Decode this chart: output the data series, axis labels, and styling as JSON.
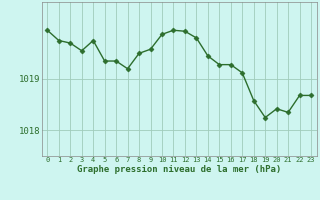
{
  "x": [
    0,
    1,
    2,
    3,
    4,
    5,
    6,
    7,
    8,
    9,
    10,
    11,
    12,
    13,
    14,
    15,
    16,
    17,
    18,
    19,
    20,
    21,
    22,
    23
  ],
  "y": [
    1019.95,
    1019.75,
    1019.7,
    1019.55,
    1019.75,
    1019.35,
    1019.35,
    1019.2,
    1019.5,
    1019.58,
    1019.87,
    1019.95,
    1019.93,
    1019.8,
    1019.45,
    1019.28,
    1019.28,
    1019.12,
    1018.58,
    1018.25,
    1018.42,
    1018.35,
    1018.68,
    1018.68
  ],
  "line_color": "#2d6e2d",
  "marker": "D",
  "marker_size": 2.5,
  "bg_color": "#cef5f0",
  "grid_color": "#a0ccbb",
  "tick_color": "#2d6e2d",
  "label_color": "#2d6e2d",
  "xlabel": "Graphe pression niveau de la mer (hPa)",
  "ylim": [
    1017.5,
    1020.5
  ],
  "yticks": [
    1018,
    1019
  ],
  "xlim": [
    -0.5,
    23.5
  ],
  "spine_color": "#888888",
  "linewidth": 1.0
}
